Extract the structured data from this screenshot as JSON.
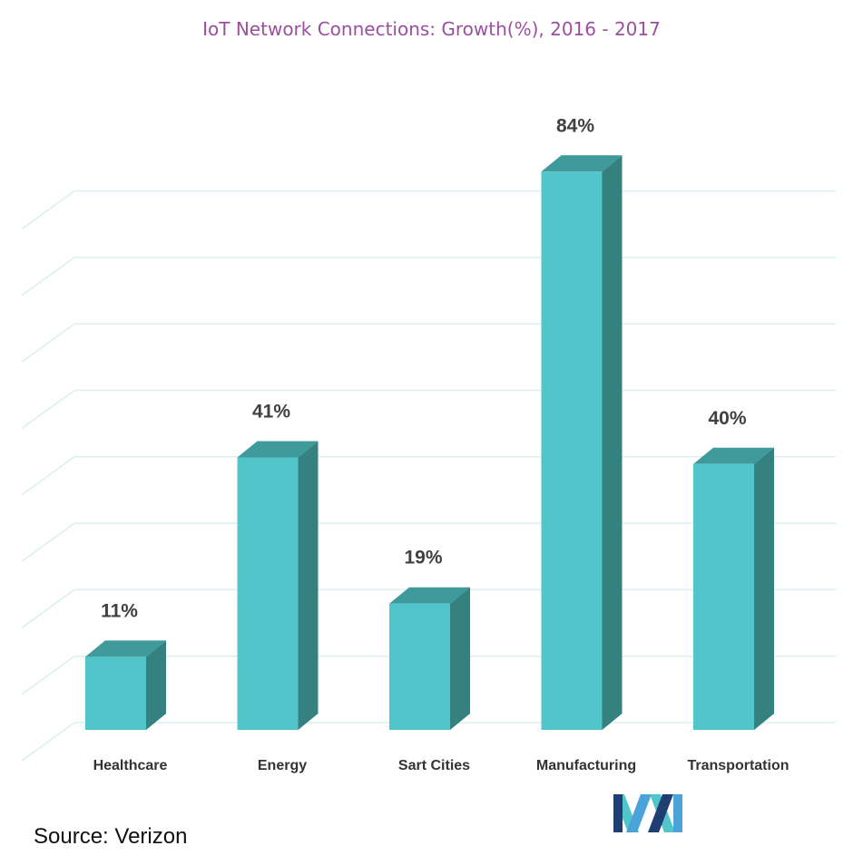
{
  "chart_data": {
    "type": "bar",
    "title": "IoT Network Connections: Growth(%), 2016 - 2017",
    "xlabel": "",
    "ylabel": "",
    "categories": [
      "Healthcare",
      "Energy",
      "Sart Cities",
      "Manufacturing",
      "Transportation"
    ],
    "values": [
      11,
      41,
      19,
      84,
      40
    ],
    "value_labels": [
      "11%",
      "41%",
      "19%",
      "84%",
      "40%"
    ],
    "ylim": [
      0,
      85
    ],
    "grid": true,
    "legend": "none",
    "colors": {
      "front": "#52c5ca",
      "side": "#358180",
      "top": "#3e9a9b",
      "grid": "#dbeff0",
      "value_label": "#404040",
      "category_label": "#333333"
    }
  },
  "source": "Source: Verizon",
  "logo": {
    "icon": "company-logo-icon",
    "colors": [
      "#1f3f73",
      "#4aa3d9",
      "#52c5ca"
    ]
  }
}
